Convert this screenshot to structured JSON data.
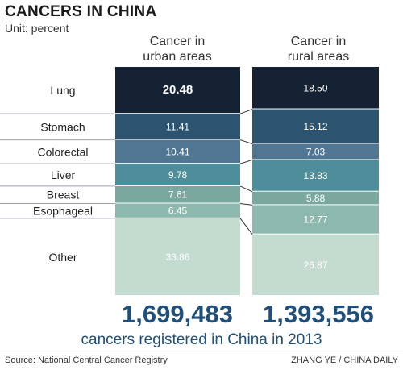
{
  "header": {
    "title": "CANCERS IN CHINA",
    "unit": "Unit: percent"
  },
  "columns": [
    {
      "line1": "Cancer in",
      "line2": "urban areas"
    },
    {
      "line1": "Cancer in",
      "line2": "rural areas"
    }
  ],
  "totals": {
    "urban": "1,699,483",
    "rural": "1,393,556",
    "caption": "cancers registered in China in 2013"
  },
  "footer": {
    "source": "Source: National Central Cancer Registry",
    "credit": "ZHANG YE / CHINA DAILY"
  },
  "colors": {
    "Lung": "#152233",
    "Stomach": "#2c5470",
    "Colorectal": "#517694",
    "Liver": "#4e8e9a",
    "Breast": "#7aa89e",
    "Esophageal": "#8db8ae",
    "Other": "#c4dbd0",
    "total_text": "#1f4f7a"
  },
  "chart_data": {
    "type": "bar",
    "stacked": true,
    "categories": [
      "Lung",
      "Stomach",
      "Colorectal",
      "Liver",
      "Breast",
      "Esophageal",
      "Other"
    ],
    "series": [
      {
        "name": "Cancer in urban areas",
        "values": [
          20.48,
          11.41,
          10.41,
          9.78,
          7.61,
          6.45,
          33.86
        ]
      },
      {
        "name": "Cancer in rural areas",
        "values": [
          18.5,
          15.12,
          7.03,
          13.83,
          5.88,
          12.77,
          26.87
        ]
      }
    ],
    "title": "CANCERS IN CHINA",
    "ylabel": "Unit: percent"
  }
}
